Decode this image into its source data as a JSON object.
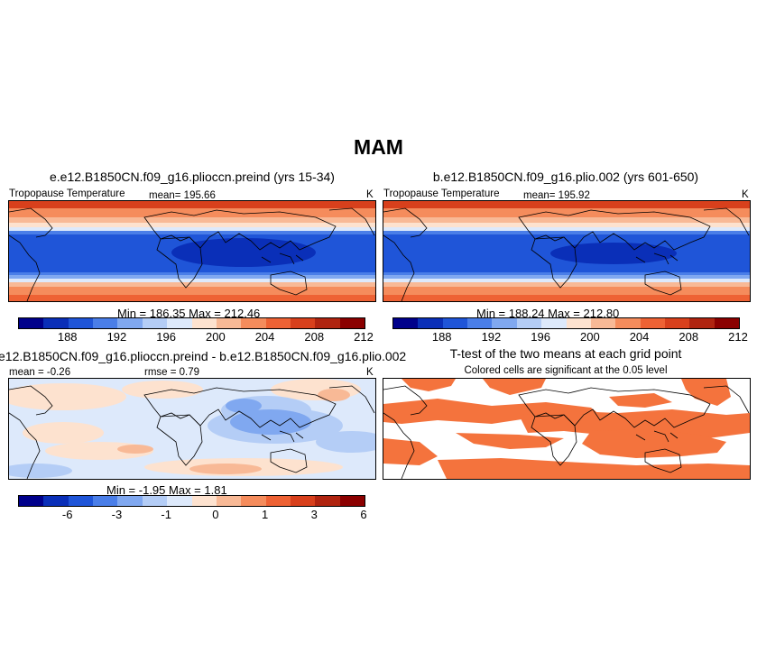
{
  "figure": {
    "title": "MAM"
  },
  "panels": [
    {
      "title": "e.e12.B1850CN.f09_g16.plioccn.preind (yrs 15-34)",
      "left_label": "Tropopause Temperature",
      "mean_label": "mean= 195.66",
      "units": "K",
      "minmax": "Min = 186.35  Max = 212.46",
      "ticks": [
        "188",
        "192",
        "196",
        "200",
        "204",
        "208",
        "212"
      ]
    },
    {
      "title": "b.e12.B1850CN.f09_g16.plio.002 (yrs 601-650)",
      "left_label": "Tropopause Temperature",
      "mean_label": "mean= 195.92",
      "units": "K",
      "minmax": "Min = 188.24  Max = 212.80",
      "ticks": [
        "188",
        "192",
        "196",
        "200",
        "204",
        "208",
        "212"
      ]
    },
    {
      "title": "e12.B1850CN.f09_g16.plioccn.preind - b.e12.B1850CN.f09_g16.plio.002",
      "left_label": "mean =  -0.26",
      "mean_label": "rmse =   0.79",
      "units": "K",
      "minmax": "Min =  -1.95  Max =   1.81",
      "ticks": [
        "-6",
        "-3",
        "-1",
        "0",
        "1",
        "3",
        "6"
      ]
    },
    {
      "title": "T-test of the two means at each grid point",
      "subtitle": "Colored cells are significant at the 0.05 level"
    }
  ],
  "colors": {
    "colorbar": [
      "#00008b",
      "#0a2fb8",
      "#1f55d8",
      "#4a7ee8",
      "#80a8f0",
      "#b4cdf6",
      "#dde9fb",
      "#fde2cf",
      "#f8b996",
      "#f58c5c",
      "#ee6234",
      "#d8401c",
      "#b02410",
      "#8b0000"
    ],
    "significant": "#f4733d"
  }
}
